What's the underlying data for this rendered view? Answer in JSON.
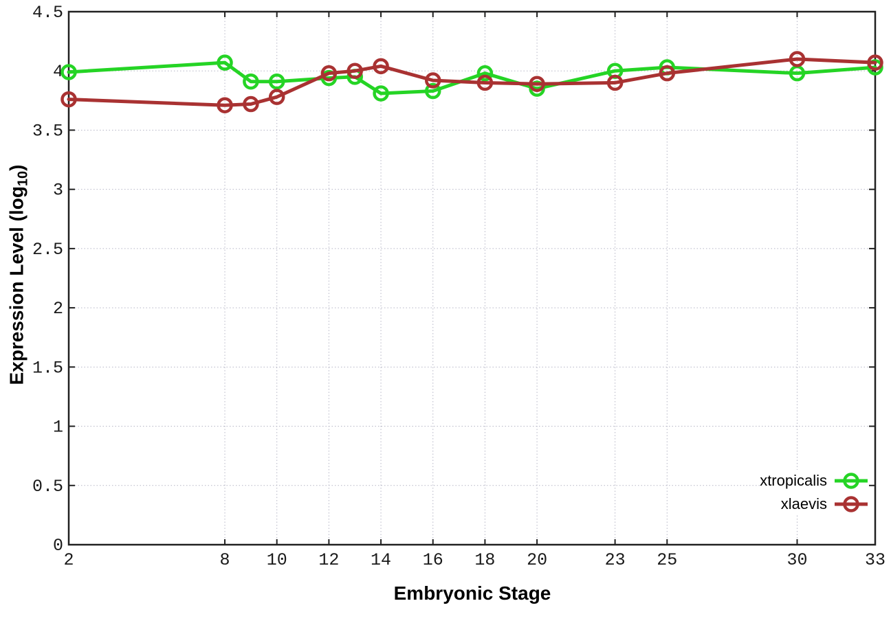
{
  "chart_data": {
    "type": "line",
    "x": [
      2,
      8,
      9,
      10,
      12,
      13,
      14,
      16,
      18,
      20,
      23,
      25,
      30,
      33
    ],
    "series": [
      {
        "name": "xtropicalis",
        "color": "#25d425",
        "values": [
          3.99,
          4.07,
          3.91,
          3.91,
          3.94,
          3.95,
          3.81,
          3.83,
          3.98,
          3.85,
          4.0,
          4.03,
          3.98,
          4.03
        ]
      },
      {
        "name": "xlaevis",
        "color": "#a93232",
        "values": [
          3.76,
          3.71,
          3.72,
          3.78,
          3.98,
          4.0,
          4.04,
          3.92,
          3.9,
          3.89,
          3.9,
          3.98,
          4.1,
          4.07
        ]
      }
    ],
    "title": "",
    "xlabel": "Embryonic Stage",
    "ylabel": "Expression Level (log10)",
    "ylabel_parts": {
      "main": "Expression Level (log",
      "sub": "10",
      "end": ")"
    },
    "xlim": [
      2,
      33
    ],
    "ylim": [
      0,
      4.5
    ],
    "xticks": [
      2,
      8,
      10,
      12,
      14,
      16,
      18,
      20,
      23,
      25,
      30,
      33
    ],
    "xtick_labels": [
      "2",
      "8",
      "10",
      "12",
      "14",
      "16",
      "18",
      "20",
      "23",
      "25",
      "30",
      "33"
    ],
    "yticks": [
      0,
      0.5,
      1,
      1.5,
      2,
      2.5,
      3,
      3.5,
      4,
      4.5
    ],
    "ytick_labels": [
      "0",
      "0.5",
      "1",
      "1.5",
      "2",
      "2.5",
      "3",
      "3.5",
      "4",
      "4.5"
    ],
    "grid": true,
    "legend_position": "bottom-right",
    "marker": "open-circle"
  },
  "colors": {
    "background": "#ffffff",
    "axis": "#202020",
    "grid": "#b5b5c5",
    "tick_text": "#1a1a1a",
    "xtropicalis": "#25d425",
    "xlaevis": "#a93232"
  }
}
